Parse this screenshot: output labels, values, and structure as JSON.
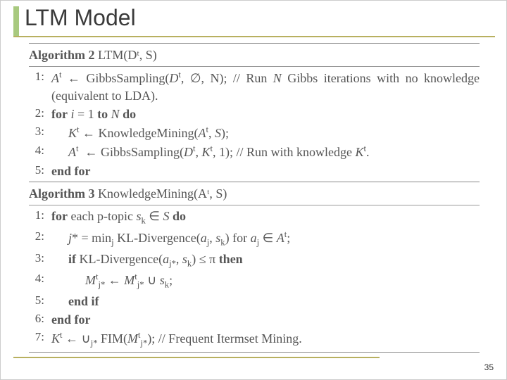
{
  "title": "LTM Model",
  "accent_color": "#a8c97f",
  "underline_color": "#b8b060",
  "page_number": "35",
  "algo1": {
    "header_bold": "Algorithm 2",
    "header_rest": " LTM(Dᵗ, S)",
    "lines": [
      {
        "n": "1:",
        "indent": 0,
        "html": "<i>A</i><span class='sup'>t</span> ← GibbsSampling(<i>D</i><span class='sup'>t</span>, ∅, N); // Run <i>N</i> Gibbs iterations with no knowledge (equivalent to LDA)."
      },
      {
        "n": "2:",
        "indent": 0,
        "html": "<b>for</b> <i>i</i> = 1 <b>to</b> <i>N</i> <b>do</b>"
      },
      {
        "n": "3:",
        "indent": 1,
        "html": "<i>K</i><span class='sup'>t</span> ← KnowledgeMining(<i>A</i><span class='sup'>t</span>, <i>S</i>);"
      },
      {
        "n": "4:",
        "indent": 1,
        "html": "<i>A</i><span class='sup'>t</span>&nbsp;&nbsp;← GibbsSampling(<i>D</i><span class='sup'>t</span>, <i>K</i><span class='sup'>t</span>, 1); // Run with knowledge <i>K</i><span class='sup'>t</span>."
      },
      {
        "n": "5:",
        "indent": 0,
        "html": "<b>end for</b>"
      }
    ]
  },
  "algo2": {
    "header_bold": "Algorithm 3",
    "header_rest": " KnowledgeMining(Aᵗ, S)",
    "lines": [
      {
        "n": "1:",
        "indent": 0,
        "html": "<b>for</b> each p-topic <i>s</i><span class='sub'>k</span> ∈ <i>S</i> <b>do</b>"
      },
      {
        "n": "2:",
        "indent": 1,
        "html": "<i>j</i>* = min<span class='sub'>j</span> KL-Divergence(<i>a</i><span class='sub'>j</span>, <i>s</i><span class='sub'>k</span>) for <i>a</i><span class='sub'>j</span> ∈ <i>A</i><span class='sup'>t</span>;"
      },
      {
        "n": "3:",
        "indent": 1,
        "html": "<b>if</b> KL-Divergence(<i>a</i><span class='sub'>j*</span>, <i>s</i><span class='sub'>k</span>) ≤ π <b>then</b>"
      },
      {
        "n": "4:",
        "indent": 2,
        "html": "<i>M</i><span class='sup'>t</span><span class='sub'>j*</span> ← <i>M</i><span class='sup'>t</span><span class='sub'>j*</span> ∪ <i>s</i><span class='sub'>k</span>;"
      },
      {
        "n": "5:",
        "indent": 1,
        "html": "<b>end if</b>"
      },
      {
        "n": "6:",
        "indent": 0,
        "html": "<b>end for</b>"
      },
      {
        "n": "7:",
        "indent": 0,
        "html": "<i>K</i><span class='sup'>t</span> ← ∪<span class='sub'>j*</span> FIM(<i>M</i><span class='sup'>t</span><span class='sub'>j*</span>); // Frequent Itermset Mining."
      }
    ]
  }
}
